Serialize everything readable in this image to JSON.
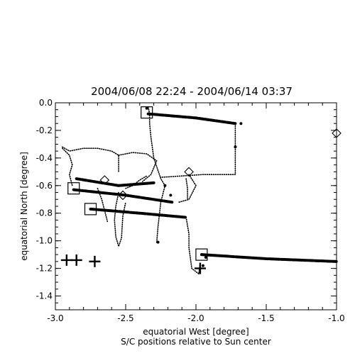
{
  "chart_data": {
    "type": "scatter",
    "title": "2004/06/08 22:24 - 2004/06/14 03:37",
    "xlabel": "equatorial West [degree]",
    "xlabel2": "S/C positions relative to Sun center",
    "ylabel": "equatorial North [degree]",
    "xlim": [
      -3.0,
      -1.0
    ],
    "ylim": [
      -1.5,
      0.0
    ],
    "xticks": [
      -3.0,
      -2.5,
      -2.0,
      -1.5,
      -1.0
    ],
    "xtick_labels": [
      "-3.0",
      "-2.5",
      "-2.0",
      "-1.5",
      "-1.0"
    ],
    "yticks": [
      0.0,
      -0.2,
      -0.4,
      -0.6,
      -0.8,
      -1.0,
      -1.2,
      -1.4
    ],
    "ytick_labels": [
      "0.0",
      "-0.2",
      "-0.4",
      "-0.6",
      "-0.8",
      "-1.0",
      "-1.2",
      "-1.4"
    ],
    "grid": false,
    "colors": {
      "ink": "#000000",
      "background": "#ffffff"
    },
    "series": [
      {
        "style": "dashed-thick",
        "points": [
          [
            -2.34,
            -0.08
          ],
          [
            -2.0,
            -0.11
          ],
          [
            -1.72,
            -0.15
          ]
        ]
      },
      {
        "style": "dashed-thick",
        "points": [
          [
            -2.87,
            -0.63
          ],
          [
            -2.5,
            -0.67
          ],
          [
            -2.17,
            -0.72
          ]
        ]
      },
      {
        "style": "dashed-thick",
        "points": [
          [
            -2.75,
            -0.77
          ],
          [
            -2.4,
            -0.8
          ],
          [
            -2.07,
            -0.83
          ]
        ]
      },
      {
        "style": "dashed-thick",
        "points": [
          [
            -1.96,
            -1.1
          ],
          [
            -1.5,
            -1.13
          ],
          [
            -1.0,
            -1.15
          ]
        ]
      },
      {
        "style": "dashed-thick",
        "points": [
          [
            -2.85,
            -0.55
          ],
          [
            -2.55,
            -0.6
          ],
          [
            -2.3,
            -0.58
          ]
        ]
      },
      {
        "style": "dotted",
        "points": [
          [
            -2.34,
            -0.03
          ],
          [
            -2.33,
            -0.08
          ],
          [
            -2.33,
            -0.15
          ],
          [
            -2.32,
            -0.25
          ],
          [
            -2.3,
            -0.4
          ],
          [
            -2.25,
            -0.55
          ],
          [
            -2.22,
            -0.6
          ],
          [
            -2.25,
            -0.72
          ],
          [
            -2.27,
            -0.9
          ],
          [
            -2.28,
            -1.02
          ]
        ]
      },
      {
        "style": "dotted",
        "points": [
          [
            -1.72,
            -0.15
          ],
          [
            -1.72,
            -0.3
          ],
          [
            -1.72,
            -0.45
          ],
          [
            -1.72,
            -0.52
          ],
          [
            -1.8,
            -0.52
          ],
          [
            -1.95,
            -0.52
          ],
          [
            -2.1,
            -0.53
          ],
          [
            -2.25,
            -0.54
          ]
        ]
      },
      {
        "style": "dotted",
        "points": [
          [
            -2.95,
            -0.32
          ],
          [
            -2.9,
            -0.35
          ],
          [
            -2.8,
            -0.33
          ],
          [
            -2.7,
            -0.33
          ],
          [
            -2.6,
            -0.35
          ],
          [
            -2.55,
            -0.38
          ],
          [
            -2.55,
            -0.5
          ]
        ]
      },
      {
        "style": "dotted",
        "points": [
          [
            -2.95,
            -0.33
          ],
          [
            -2.9,
            -0.38
          ],
          [
            -2.88,
            -0.45
          ],
          [
            -2.9,
            -0.52
          ],
          [
            -2.88,
            -0.6
          ]
        ]
      },
      {
        "style": "dotted",
        "points": [
          [
            -2.55,
            -0.38
          ],
          [
            -2.45,
            -0.36
          ],
          [
            -2.35,
            -0.37
          ],
          [
            -2.28,
            -0.42
          ],
          [
            -2.32,
            -0.52
          ],
          [
            -2.38,
            -0.57
          ]
        ]
      },
      {
        "style": "dotted",
        "points": [
          [
            -2.7,
            -0.62
          ],
          [
            -2.67,
            -0.7
          ],
          [
            -2.65,
            -0.78
          ],
          [
            -2.63,
            -0.86
          ]
        ]
      },
      {
        "style": "dotted",
        "points": [
          [
            -2.55,
            -0.65
          ],
          [
            -2.57,
            -0.75
          ],
          [
            -2.58,
            -0.85
          ],
          [
            -2.57,
            -0.97
          ],
          [
            -2.55,
            -1.04
          ],
          [
            -2.53,
            -0.98
          ],
          [
            -2.52,
            -0.82
          ],
          [
            -2.5,
            -0.72
          ]
        ]
      },
      {
        "style": "dotted",
        "points": [
          [
            -2.5,
            -0.62
          ],
          [
            -2.45,
            -0.6
          ],
          [
            -2.4,
            -0.56
          ],
          [
            -2.35,
            -0.53
          ]
        ]
      },
      {
        "style": "dotted",
        "points": [
          [
            -2.12,
            -0.72
          ],
          [
            -2.05,
            -0.7
          ],
          [
            -2.0,
            -0.6
          ],
          [
            -2.05,
            -0.52
          ]
        ]
      },
      {
        "style": "dotted",
        "points": [
          [
            -2.07,
            -0.83
          ],
          [
            -2.05,
            -0.95
          ],
          [
            -2.05,
            -1.05
          ],
          [
            -2.03,
            -1.2
          ],
          [
            -1.98,
            -1.24
          ],
          [
            -1.97,
            -1.16
          ]
        ]
      },
      {
        "style": "dotted",
        "points": [
          [
            -2.07,
            -0.55
          ],
          [
            -2.06,
            -0.62
          ],
          [
            -2.06,
            -0.7
          ]
        ]
      }
    ],
    "squares": [
      [
        -2.35,
        -0.07
      ],
      [
        -2.87,
        -0.62
      ],
      [
        -2.75,
        -0.77
      ],
      [
        -1.96,
        -1.1
      ]
    ],
    "diamonds": [
      [
        -2.65,
        -0.56
      ],
      [
        -2.52,
        -0.67
      ],
      [
        -2.05,
        -0.5
      ],
      [
        -1.0,
        -0.22
      ]
    ],
    "crosses": [
      [
        -2.92,
        -1.14
      ],
      [
        -2.85,
        -1.14
      ],
      [
        -2.72,
        -1.15
      ],
      [
        -1.97,
        -1.2
      ]
    ],
    "small_dots": [
      [
        -2.35,
        -0.04
      ],
      [
        -2.22,
        -0.6
      ],
      [
        -2.18,
        -0.67
      ],
      [
        -2.27,
        -1.01
      ],
      [
        -1.93,
        -1.12
      ],
      [
        -1.95,
        -1.18
      ],
      [
        -1.68,
        -0.15
      ],
      [
        -1.72,
        -0.32
      ]
    ]
  }
}
